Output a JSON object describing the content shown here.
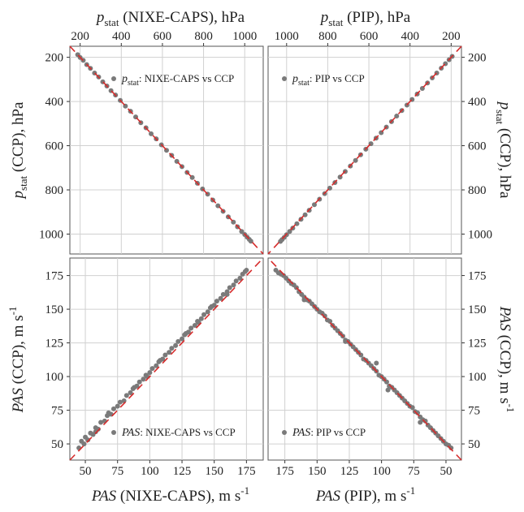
{
  "colors": {
    "points": "#7a7a7a",
    "reference": "#d62b2b",
    "grid": "#d0d0d0",
    "frame": "#555555"
  },
  "top_axis": {
    "left": {
      "main": "p",
      "sub": "stat",
      "rest": " (NIXE-CAPS), hPa"
    },
    "right": {
      "main": "p",
      "sub": "stat",
      "rest": " (PIP), hPa"
    }
  },
  "left_axis": {
    "top": {
      "main": "p",
      "sub": "stat",
      "rest": " (CCP), hPa"
    },
    "bottom": {
      "main": "PAS",
      "rest": " (CCP), m s",
      "sup": "-1"
    }
  },
  "right_axis": {
    "top": {
      "main": "p",
      "sub": "stat",
      "rest": " (CCP), hPa"
    },
    "bottom": {
      "main": "PAS",
      "rest": " (CCP), m s",
      "sup": "-1"
    }
  },
  "bottom_axis": {
    "left": {
      "main": "PAS",
      "rest": " (NIXE-CAPS), m s",
      "sup": "-1"
    },
    "right": {
      "main": "PAS",
      "rest": " (PIP), m s",
      "sup": "-1"
    }
  },
  "chart_data": [
    {
      "id": "top-left",
      "type": "scatter",
      "legend": {
        "main": "p",
        "sub": "stat",
        "rest": ": NIXE-CAPS vs CCP"
      },
      "legend_position": "top-right",
      "grid": true,
      "xlim": [
        150,
        1090
      ],
      "ylim": [
        1090,
        150
      ],
      "xticks": [
        200,
        400,
        600,
        800,
        1000
      ],
      "yticks": [
        200,
        400,
        600,
        800,
        1000
      ],
      "x_axis_position": "top",
      "y_axis_position": "left",
      "reference_line": "1:1",
      "points": [
        [
          188,
          188
        ],
        [
          200,
          201
        ],
        [
          215,
          214
        ],
        [
          232,
          233
        ],
        [
          250,
          250
        ],
        [
          270,
          271
        ],
        [
          290,
          289
        ],
        [
          310,
          311
        ],
        [
          330,
          330
        ],
        [
          350,
          351
        ],
        [
          372,
          371
        ],
        [
          395,
          395
        ],
        [
          420,
          421
        ],
        [
          445,
          444
        ],
        [
          470,
          470
        ],
        [
          495,
          496
        ],
        [
          520,
          519
        ],
        [
          545,
          546
        ],
        [
          570,
          569
        ],
        [
          595,
          596
        ],
        [
          620,
          621
        ],
        [
          645,
          644
        ],
        [
          670,
          671
        ],
        [
          695,
          695
        ],
        [
          720,
          721
        ],
        [
          745,
          744
        ],
        [
          770,
          770
        ],
        [
          795,
          796
        ],
        [
          820,
          819
        ],
        [
          845,
          846
        ],
        [
          870,
          872
        ],
        [
          895,
          897
        ],
        [
          920,
          922
        ],
        [
          945,
          946
        ],
        [
          965,
          967
        ],
        [
          985,
          988
        ],
        [
          1000,
          1002
        ],
        [
          1012,
          1014
        ],
        [
          1022,
          1024
        ],
        [
          1030,
          1032
        ]
      ]
    },
    {
      "id": "top-right",
      "type": "scatter",
      "legend": {
        "main": "p",
        "sub": "stat",
        "rest": ": PIP vs CCP"
      },
      "legend_position": "top-left",
      "grid": true,
      "xlim": [
        1090,
        150
      ],
      "ylim": [
        1090,
        150
      ],
      "xticks": [
        1000,
        800,
        600,
        400,
        200
      ],
      "yticks": [
        200,
        400,
        600,
        800,
        1000
      ],
      "x_axis_position": "top",
      "y_axis_position": "right",
      "reference_line": "1:1",
      "points": [
        [
          195,
          196
        ],
        [
          210,
          211
        ],
        [
          228,
          229
        ],
        [
          248,
          249
        ],
        [
          270,
          271
        ],
        [
          292,
          293
        ],
        [
          315,
          316
        ],
        [
          340,
          341
        ],
        [
          365,
          366
        ],
        [
          390,
          391
        ],
        [
          415,
          416
        ],
        [
          440,
          441
        ],
        [
          465,
          466
        ],
        [
          490,
          491
        ],
        [
          515,
          516
        ],
        [
          540,
          541
        ],
        [
          565,
          566
        ],
        [
          590,
          591
        ],
        [
          615,
          616
        ],
        [
          640,
          641
        ],
        [
          665,
          667
        ],
        [
          690,
          692
        ],
        [
          715,
          717
        ],
        [
          740,
          742
        ],
        [
          765,
          767
        ],
        [
          790,
          792
        ],
        [
          815,
          817
        ],
        [
          840,
          842
        ],
        [
          865,
          867
        ],
        [
          890,
          892
        ],
        [
          910,
          913
        ],
        [
          930,
          933
        ],
        [
          950,
          953
        ],
        [
          970,
          973
        ],
        [
          985,
          988
        ],
        [
          1000,
          1003
        ],
        [
          1012,
          1015
        ],
        [
          1022,
          1025
        ],
        [
          1030,
          1033
        ]
      ]
    },
    {
      "id": "bottom-left",
      "type": "scatter",
      "legend": {
        "main": "PAS",
        "rest": ": NIXE-CAPS vs CCP"
      },
      "legend_position": "bottom-right",
      "grid": true,
      "xlim": [
        38,
        188
      ],
      "ylim": [
        38,
        188
      ],
      "xticks": [
        50,
        75,
        100,
        125,
        150,
        175
      ],
      "yticks": [
        50,
        75,
        100,
        125,
        150,
        175
      ],
      "x_axis_position": "bottom",
      "y_axis_position": "left",
      "reference_line": "1:1",
      "points": [
        [
          45,
          47
        ],
        [
          47,
          52
        ],
        [
          49,
          50
        ],
        [
          50,
          55
        ],
        [
          52,
          53
        ],
        [
          54,
          58
        ],
        [
          56,
          57
        ],
        [
          58,
          62
        ],
        [
          60,
          61
        ],
        [
          62,
          66
        ],
        [
          65,
          67
        ],
        [
          67,
          71
        ],
        [
          70,
          72
        ],
        [
          72,
          76
        ],
        [
          75,
          78
        ],
        [
          77,
          81
        ],
        [
          80,
          82
        ],
        [
          82,
          86
        ],
        [
          85,
          88
        ],
        [
          87,
          91
        ],
        [
          90,
          93
        ],
        [
          92,
          96
        ],
        [
          95,
          98
        ],
        [
          97,
          101
        ],
        [
          100,
          103
        ],
        [
          102,
          106
        ],
        [
          105,
          108
        ],
        [
          107,
          111
        ],
        [
          110,
          113
        ],
        [
          112,
          116
        ],
        [
          115,
          118
        ],
        [
          117,
          121
        ],
        [
          120,
          123
        ],
        [
          122,
          126
        ],
        [
          125,
          128
        ],
        [
          127,
          131
        ],
        [
          130,
          133
        ],
        [
          132,
          136
        ],
        [
          135,
          138
        ],
        [
          137,
          141
        ],
        [
          140,
          143
        ],
        [
          142,
          146
        ],
        [
          145,
          148
        ],
        [
          147,
          151
        ],
        [
          150,
          153
        ],
        [
          152,
          156
        ],
        [
          155,
          158
        ],
        [
          157,
          161
        ],
        [
          160,
          163
        ],
        [
          162,
          166
        ],
        [
          165,
          168
        ],
        [
          167,
          171
        ],
        [
          170,
          173
        ],
        [
          172,
          176
        ],
        [
          174,
          178
        ],
        [
          175,
          179
        ],
        [
          68,
          73
        ],
        [
          88,
          92
        ],
        [
          108,
          112
        ],
        [
          128,
          132
        ],
        [
          148,
          152
        ],
        [
          58,
          59
        ],
        [
          98,
          100
        ],
        [
          138,
          140
        ],
        [
          160,
          161
        ]
      ]
    },
    {
      "id": "bottom-right",
      "type": "scatter",
      "legend": {
        "main": "PAS",
        "rest": ": PIP vs CCP"
      },
      "legend_position": "bottom-left",
      "grid": true,
      "xlim": [
        188,
        38
      ],
      "ylim": [
        38,
        188
      ],
      "xticks": [
        175,
        150,
        125,
        100,
        75,
        50
      ],
      "yticks": [
        50,
        75,
        100,
        125,
        150,
        175
      ],
      "x_axis_position": "bottom",
      "y_axis_position": "right",
      "reference_line": "1:1",
      "points": [
        [
          182,
          179
        ],
        [
          180,
          177
        ],
        [
          178,
          176
        ],
        [
          176,
          175
        ],
        [
          174,
          173
        ],
        [
          172,
          171
        ],
        [
          170,
          169
        ],
        [
          168,
          168
        ],
        [
          166,
          166
        ],
        [
          164,
          163
        ],
        [
          162,
          161
        ],
        [
          160,
          159
        ],
        [
          158,
          157
        ],
        [
          156,
          156
        ],
        [
          154,
          154
        ],
        [
          152,
          152
        ],
        [
          150,
          150
        ],
        [
          148,
          148
        ],
        [
          146,
          147
        ],
        [
          144,
          145
        ],
        [
          142,
          142
        ],
        [
          140,
          141
        ],
        [
          138,
          138
        ],
        [
          136,
          136
        ],
        [
          134,
          134
        ],
        [
          132,
          132
        ],
        [
          130,
          130
        ],
        [
          128,
          127
        ],
        [
          126,
          126
        ],
        [
          124,
          124
        ],
        [
          122,
          122
        ],
        [
          120,
          120
        ],
        [
          118,
          118
        ],
        [
          116,
          116
        ],
        [
          114,
          113
        ],
        [
          112,
          112
        ],
        [
          110,
          110
        ],
        [
          108,
          108
        ],
        [
          106,
          106
        ],
        [
          104,
          104
        ],
        [
          102,
          101
        ],
        [
          100,
          100
        ],
        [
          98,
          98
        ],
        [
          96,
          96
        ],
        [
          94,
          93
        ],
        [
          92,
          92
        ],
        [
          90,
          90
        ],
        [
          88,
          88
        ],
        [
          86,
          86
        ],
        [
          84,
          84
        ],
        [
          82,
          82
        ],
        [
          80,
          80
        ],
        [
          78,
          78
        ],
        [
          76,
          77
        ],
        [
          74,
          74
        ],
        [
          72,
          73
        ],
        [
          70,
          70
        ],
        [
          68,
          68
        ],
        [
          66,
          67
        ],
        [
          64,
          64
        ],
        [
          62,
          62
        ],
        [
          60,
          60
        ],
        [
          58,
          58
        ],
        [
          56,
          56
        ],
        [
          54,
          54
        ],
        [
          52,
          52
        ],
        [
          50,
          50
        ],
        [
          48,
          49
        ],
        [
          46,
          47
        ],
        [
          104,
          110
        ],
        [
          128,
          126
        ],
        [
          95,
          90
        ],
        [
          160,
          157
        ],
        [
          70,
          66
        ]
      ]
    }
  ]
}
